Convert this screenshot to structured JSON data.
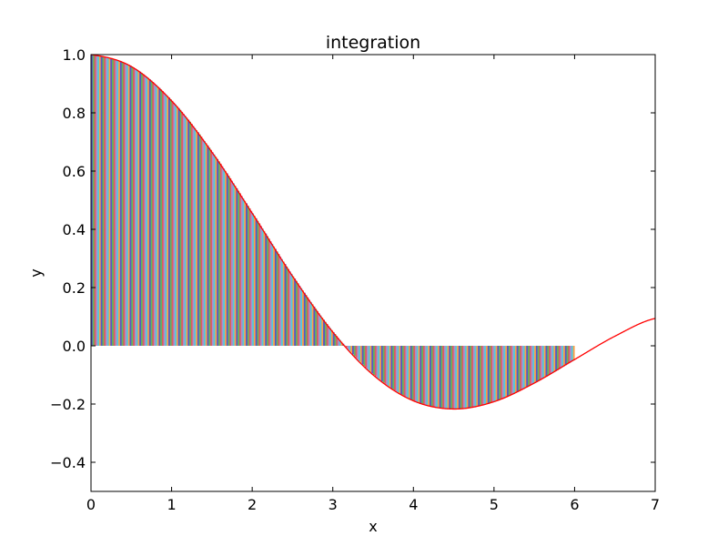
{
  "chart_data": {
    "type": "area",
    "title": "integration",
    "xlabel": "x",
    "ylabel": "y",
    "xlim": [
      0,
      7
    ],
    "ylim": [
      -0.5,
      1.0
    ],
    "xticks": [
      0,
      1,
      2,
      3,
      4,
      5,
      6,
      7
    ],
    "yticks": [
      -0.4,
      -0.2,
      0.0,
      0.2,
      0.4,
      0.6,
      0.8,
      1.0
    ],
    "xtick_labels": [
      "0",
      "1",
      "2",
      "3",
      "4",
      "5",
      "6",
      "7"
    ],
    "ytick_labels": [
      "−0.4",
      "−0.2",
      "0.0",
      "0.2",
      "0.4",
      "0.6",
      "0.8",
      "1.0"
    ],
    "grid": false,
    "line_color": "#ff0000",
    "fill_colors": [
      "#1f1fb4",
      "#2ca02c",
      "#d62728",
      "#9467bd",
      "#17becf",
      "#ff7f0e"
    ],
    "line": {
      "x": [
        0.0,
        0.5,
        1.0,
        1.5,
        2.0,
        2.5,
        3.0,
        3.5,
        4.0,
        4.5,
        5.0,
        5.5,
        6.0,
        6.5,
        7.0
      ],
      "y": [
        1.0,
        0.959,
        0.841,
        0.665,
        0.455,
        0.239,
        0.047,
        -0.1,
        -0.189,
        -0.217,
        -0.192,
        -0.128,
        -0.047,
        0.033,
        0.094
      ]
    },
    "filled_region": {
      "x_start": 0.0,
      "x_end": 6.0,
      "step": 0.02
    }
  }
}
